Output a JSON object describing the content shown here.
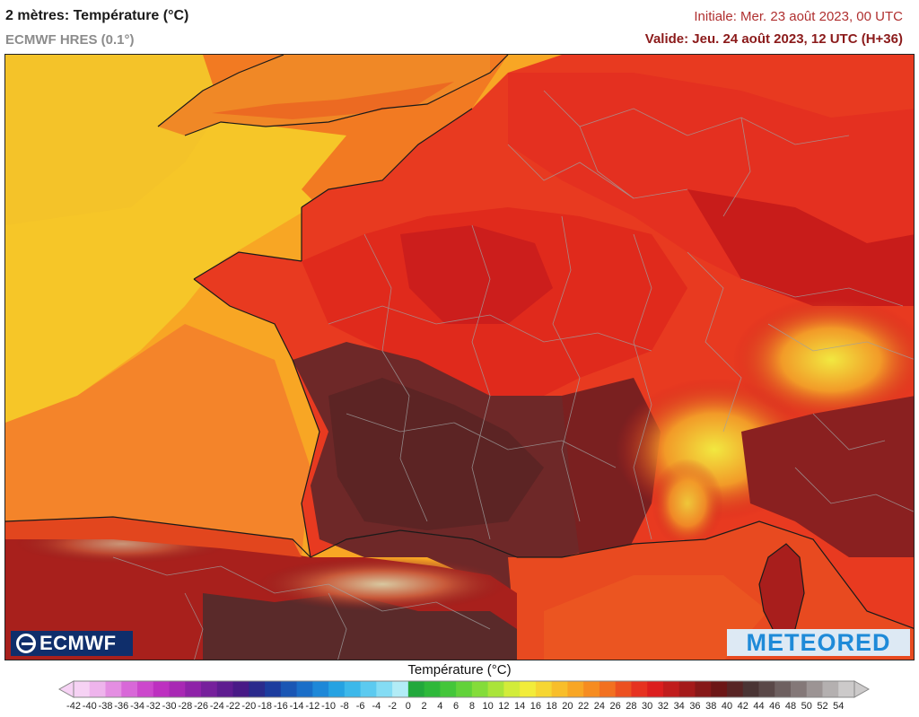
{
  "header": {
    "title": "2 mètres: Température (°C)",
    "model": "ECMWF HRES (0.1°)",
    "initial": "Initiale: Mer. 23 août 2023, 00 UTC",
    "valid": "Valide: Jeu. 24 août 2023, 12 UTC (H+36)"
  },
  "logos": {
    "left": "ECMWF",
    "right": "METEORED"
  },
  "legend": {
    "title": "Température (°C)",
    "ticks": [
      "-42",
      "-40",
      "-38",
      "-36",
      "-34",
      "-32",
      "-30",
      "-28",
      "-26",
      "-24",
      "-22",
      "-20",
      "-18",
      "-16",
      "-14",
      "-12",
      "-10",
      "-8",
      "-6",
      "-4",
      "-2",
      "0",
      "2",
      "4",
      "6",
      "8",
      "10",
      "12",
      "14",
      "16",
      "18",
      "20",
      "22",
      "24",
      "26",
      "28",
      "30",
      "32",
      "34",
      "36",
      "38",
      "40",
      "42",
      "44",
      "46",
      "48",
      "50",
      "52",
      "54"
    ],
    "colors": [
      "#f6d2f4",
      "#eeb4ec",
      "#e48ee2",
      "#d868d8",
      "#cc48cc",
      "#bd30c0",
      "#a828b4",
      "#8e22a8",
      "#76209c",
      "#5e1c90",
      "#481a86",
      "#2a2a8c",
      "#1c3c9e",
      "#1a56b4",
      "#1a6ec8",
      "#1e88d8",
      "#26a2e2",
      "#3cb8ea",
      "#5ccaf0",
      "#84dcf4",
      "#b2ecf6",
      "#22a83c",
      "#2eb83a",
      "#44c63a",
      "#62d23a",
      "#84dc3a",
      "#aae43a",
      "#d2ec3a",
      "#f2ec3a",
      "#f6d632",
      "#f8be2a",
      "#f8a624",
      "#f68c20",
      "#f27020",
      "#ec5020",
      "#e63220",
      "#dc1e1e",
      "#c01c1c",
      "#a41a1a",
      "#861818",
      "#6c1616",
      "#582424",
      "#4a3434",
      "#5a4848",
      "#6e6060",
      "#847878",
      "#9c9494",
      "#b4b0b0",
      "#cccaca"
    ]
  }
}
